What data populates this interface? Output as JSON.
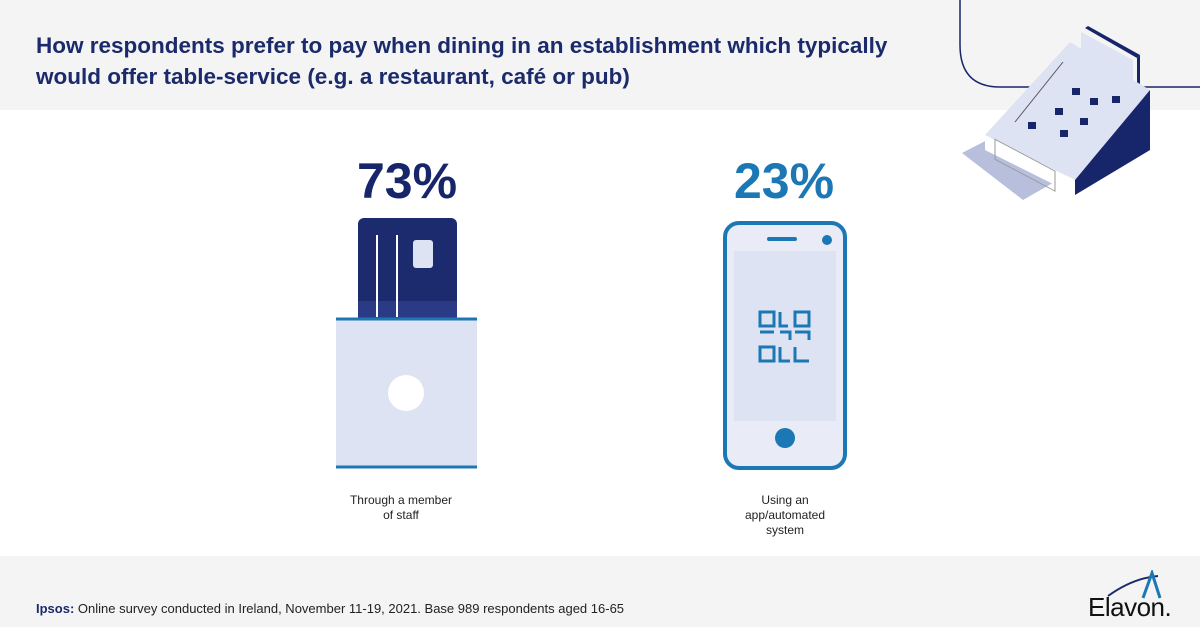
{
  "title": "How respondents prefer to pay when dining in an establishment which typically would offer table-service (e.g. a restaurant, café or pub)",
  "stats": [
    {
      "value": "73%",
      "label_line1": "Through a member",
      "label_line2": "of staff",
      "icon": "card-in-reader-icon",
      "color": "#17256b"
    },
    {
      "value": "23%",
      "label_line1": "Using an",
      "label_line2": "app/automated",
      "label_line3": "system",
      "icon": "phone-qr-code-icon",
      "color": "#1c78b5"
    }
  ],
  "source": {
    "prefix": "Ipsos:",
    "text": " Online survey conducted in Ireland, November 11-19, 2021. Base 989 respondents aged 16-65"
  },
  "logo": {
    "text": "Elavon."
  },
  "decoration": {
    "icon": "cash-register-icon"
  }
}
